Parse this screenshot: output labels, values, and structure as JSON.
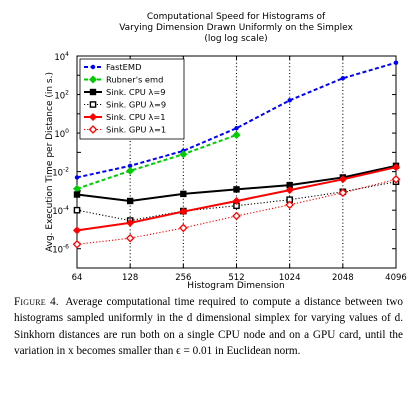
{
  "chart_data": {
    "type": "line",
    "title_lines": [
      "Computational Speed for Histograms of",
      "Varying Dimension Drawn Uniformly on the Simplex",
      "(log log scale)"
    ],
    "xlabel": "Histogram Dimension",
    "ylabel": "Avg. Execution Time per Distance (in s.)",
    "x_scale": "log2",
    "y_scale": "log10",
    "xticks": [
      64,
      128,
      256,
      512,
      1024,
      2048,
      4096
    ],
    "xtick_labels": [
      "64",
      "128",
      "256",
      "512",
      "1024",
      "2048",
      "4096"
    ],
    "yticks": [
      1e-06,
      0.0001,
      0.01,
      1,
      100,
      10000
    ],
    "ytick_labels": [
      {
        "base": "10",
        "exp": "-6"
      },
      {
        "base": "10",
        "exp": "-4"
      },
      {
        "base": "10",
        "exp": "-2"
      },
      {
        "base": "10",
        "exp": "0"
      },
      {
        "base": "10",
        "exp": "2"
      },
      {
        "base": "10",
        "exp": "4"
      }
    ],
    "xlim": [
      64,
      4096
    ],
    "ylim": [
      1e-07,
      10000
    ],
    "grid": "vertical dotted at x ticks",
    "legend_position": "top-left",
    "series": [
      {
        "name": "FastEMD",
        "color": "#0000ff",
        "line": "dashed",
        "marker": "dot",
        "x": [
          64,
          128,
          256,
          512,
          1024,
          2048,
          4096
        ],
        "y": [
          0.005,
          0.02,
          0.12,
          1.8,
          50,
          700,
          4500
        ]
      },
      {
        "name": "Rubner's emd",
        "color": "#00cc00",
        "line": "dashed",
        "marker": "diamond",
        "x": [
          64,
          128,
          256,
          512
        ],
        "y": [
          0.0013,
          0.011,
          0.08,
          0.8
        ]
      },
      {
        "name": "Sink. CPU λ=9",
        "color": "#000000",
        "line": "solid",
        "marker": "square",
        "x": [
          64,
          128,
          256,
          512,
          1024,
          2048,
          4096
        ],
        "y": [
          0.00065,
          0.0003,
          0.0007,
          0.0012,
          0.002,
          0.005,
          0.02
        ]
      },
      {
        "name": "Sink. GPU λ=9",
        "color": "#000000",
        "line": "dotted",
        "marker": "hollow-square",
        "x": [
          64,
          128,
          256,
          512,
          1024,
          2048,
          4096
        ],
        "y": [
          0.0001,
          2.9e-05,
          9e-05,
          0.00017,
          0.00035,
          0.0009,
          0.003
        ]
      },
      {
        "name": "Sink. CPU λ=1",
        "color": "#ff0000",
        "line": "solid",
        "marker": "diamond",
        "x": [
          64,
          128,
          256,
          512,
          1024,
          2048,
          4096
        ],
        "y": [
          9e-06,
          2.2e-05,
          8.5e-05,
          0.0003,
          0.0011,
          0.004,
          0.017
        ]
      },
      {
        "name": "Sink. GPU λ=1",
        "color": "#ff0000",
        "line": "dotted",
        "marker": "hollow-diamond",
        "x": [
          64,
          128,
          256,
          512,
          1024,
          2048,
          4096
        ],
        "y": [
          1.7e-06,
          3.5e-06,
          1.2e-05,
          5e-05,
          0.00019,
          0.0008,
          0.004
        ]
      }
    ]
  },
  "caption": {
    "label": "Figure 4.",
    "text": "Average computational time required to compute a distance between two histograms sampled uniformly in the d dimensional simplex for varying values of d. Sinkhorn distances are run both on a single CPU node and on a GPU card, until the variation in x becomes smaller than ϵ = 0.01 in Euclidean norm."
  }
}
